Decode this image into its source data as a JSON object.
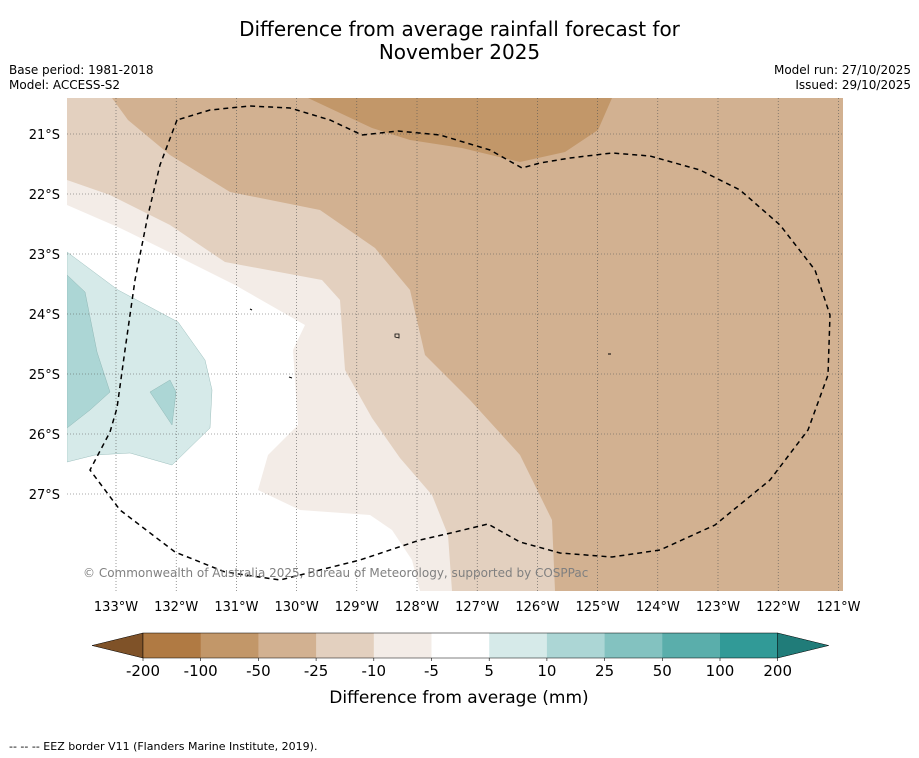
{
  "title_line1": "Difference from average rainfall forecast for",
  "title_line2": "November 2025",
  "base_period": "Base period: 1981-2018",
  "model": "Model: ACCESS-S2",
  "model_run": "Model run: 27/10/2025",
  "issued": "Issued: 29/10/2025",
  "copyright": "© Commonwealth of Australia 2025, Bureau of Meteorology, supported by COSPPac",
  "map": {
    "lon_labels": [
      "133°W",
      "132°W",
      "131°W",
      "130°W",
      "129°W",
      "128°W",
      "127°W",
      "126°W",
      "125°W",
      "124°W",
      "123°W",
      "122°W",
      "121°W"
    ],
    "lat_labels": [
      "21°S",
      "22°S",
      "23°S",
      "24°S",
      "25°S",
      "26°S",
      "27°S"
    ],
    "lon_range": [
      -133.8,
      -120.9
    ],
    "lat_range": [
      -28.6,
      -20.4
    ]
  },
  "colorbar": {
    "title": "Difference from average (mm)",
    "tick_labels": [
      "-200",
      "-100",
      "-50",
      "-25",
      "-10",
      "-5",
      "5",
      "10",
      "25",
      "50",
      "100",
      "200"
    ],
    "colors": [
      "#7f5228",
      "#b07a43",
      "#c29769",
      "#d2b191",
      "#e3d0bf",
      "#f3ece7",
      "#ffffff",
      "#d6eae9",
      "#acd6d5",
      "#83c2c0",
      "#5aaeab",
      "#319a97",
      "#207c79"
    ]
  },
  "footnote": "--  --  -- EEZ border V11 (Flanders Marine Institute, 2019)."
}
